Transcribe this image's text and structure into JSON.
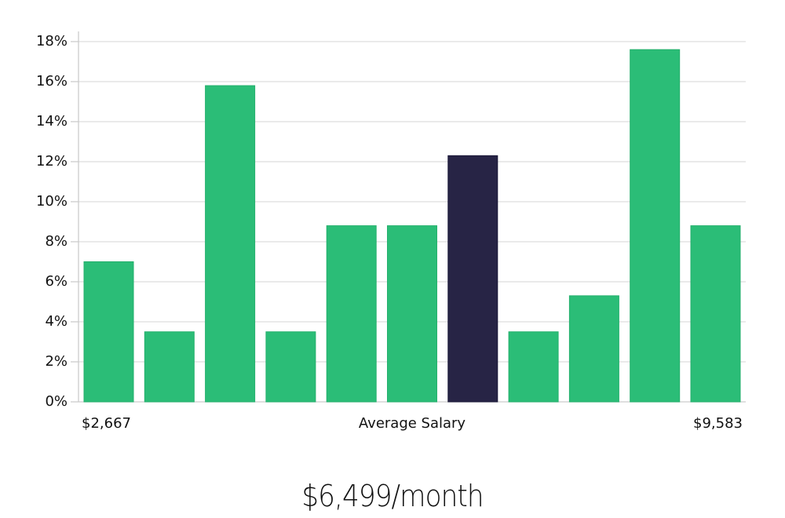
{
  "chart_data": {
    "type": "bar",
    "title": "",
    "xlabel": "Average Salary",
    "ylabel": "",
    "x_range_labels": {
      "min": "$2,667",
      "max": "$9,583"
    },
    "categories": [
      "bin1",
      "bin2",
      "bin3",
      "bin4",
      "bin5",
      "bin6",
      "bin7",
      "bin8",
      "bin9",
      "bin10",
      "bin11"
    ],
    "values": [
      7.0,
      3.5,
      15.8,
      3.5,
      8.8,
      8.8,
      12.3,
      3.5,
      5.3,
      17.6,
      8.8
    ],
    "highlight_index": 6,
    "ylim": [
      0,
      18
    ],
    "yticks": [
      0,
      2,
      4,
      6,
      8,
      10,
      12,
      14,
      16,
      18
    ],
    "ytick_labels": [
      "0%",
      "2%",
      "4%",
      "6%",
      "8%",
      "10%",
      "12%",
      "14%",
      "16%",
      "18%"
    ],
    "grid": true,
    "colors": {
      "bar": "#2bbd77",
      "highlight": "#272445",
      "grid": "#dddddd",
      "axis": "#cccccc"
    }
  },
  "labels": {
    "x_min": "$2,667",
    "x_center": "Average Salary",
    "x_max": "$9,583",
    "summary": "$6,499/month"
  }
}
